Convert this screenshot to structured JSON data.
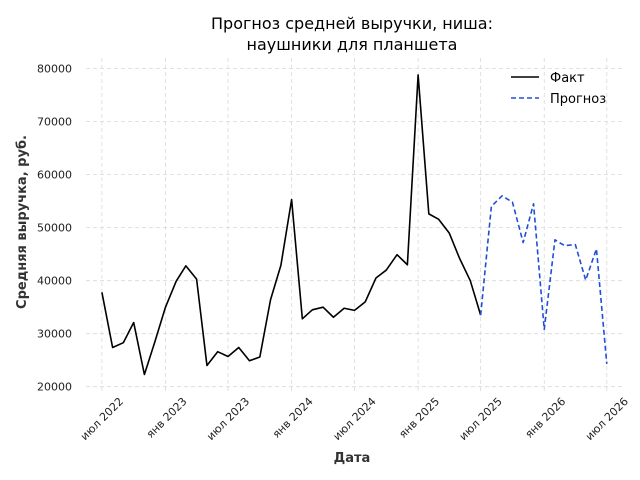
{
  "chart_data": {
    "type": "line",
    "title_lines": [
      "Прогноз средней выручки, ниша:",
      "наушники для планшета"
    ],
    "xlabel": "Дата",
    "ylabel": "Средняя выручка, руб.",
    "ylim": [
      19000,
      82000
    ],
    "xlim": [
      "2022-05-16",
      "2026-08-14"
    ],
    "y_ticks": [
      20000,
      30000,
      40000,
      50000,
      60000,
      70000,
      80000
    ],
    "x_ticks": [
      {
        "date": "2022-07-01",
        "label": "июл 2022"
      },
      {
        "date": "2023-01-01",
        "label": "янв 2023"
      },
      {
        "date": "2023-07-01",
        "label": "июл 2023"
      },
      {
        "date": "2024-01-01",
        "label": "янв 2024"
      },
      {
        "date": "2024-07-01",
        "label": "июл 2024"
      },
      {
        "date": "2025-01-01",
        "label": "янв 2025"
      },
      {
        "date": "2025-07-01",
        "label": "июл 2025"
      },
      {
        "date": "2026-01-01",
        "label": "янв 2026"
      },
      {
        "date": "2026-07-01",
        "label": "июл 2026"
      }
    ],
    "grid": true,
    "legend_position": "top-right",
    "series": [
      {
        "name": "Факт",
        "color": "#000000",
        "dash": "solid",
        "points": [
          {
            "x": "2022-07-01",
            "y": 37800
          },
          {
            "x": "2022-08-01",
            "y": 27400
          },
          {
            "x": "2022-09-01",
            "y": 28300
          },
          {
            "x": "2022-10-01",
            "y": 32100
          },
          {
            "x": "2022-11-01",
            "y": 22300
          },
          {
            "x": "2022-12-01",
            "y": 28400
          },
          {
            "x": "2023-01-01",
            "y": 35000
          },
          {
            "x": "2023-02-01",
            "y": 39900
          },
          {
            "x": "2023-03-01",
            "y": 42800
          },
          {
            "x": "2023-04-01",
            "y": 40300
          },
          {
            "x": "2023-05-01",
            "y": 24000
          },
          {
            "x": "2023-06-01",
            "y": 26600
          },
          {
            "x": "2023-07-01",
            "y": 25700
          },
          {
            "x": "2023-08-01",
            "y": 27400
          },
          {
            "x": "2023-09-01",
            "y": 24900
          },
          {
            "x": "2023-10-01",
            "y": 25600
          },
          {
            "x": "2023-11-01",
            "y": 36400
          },
          {
            "x": "2023-12-01",
            "y": 42900
          },
          {
            "x": "2024-01-01",
            "y": 55300
          },
          {
            "x": "2024-02-01",
            "y": 32800
          },
          {
            "x": "2024-03-01",
            "y": 34500
          },
          {
            "x": "2024-04-01",
            "y": 35000
          },
          {
            "x": "2024-05-01",
            "y": 33100
          },
          {
            "x": "2024-06-01",
            "y": 34800
          },
          {
            "x": "2024-07-01",
            "y": 34400
          },
          {
            "x": "2024-08-01",
            "y": 36000
          },
          {
            "x": "2024-09-01",
            "y": 40500
          },
          {
            "x": "2024-10-01",
            "y": 42000
          },
          {
            "x": "2024-11-01",
            "y": 44900
          },
          {
            "x": "2024-12-01",
            "y": 43000
          },
          {
            "x": "2025-01-01",
            "y": 78800
          },
          {
            "x": "2025-02-01",
            "y": 52600
          },
          {
            "x": "2025-03-01",
            "y": 51600
          },
          {
            "x": "2025-04-01",
            "y": 49000
          },
          {
            "x": "2025-05-01",
            "y": 44200
          },
          {
            "x": "2025-06-01",
            "y": 40000
          },
          {
            "x": "2025-07-01",
            "y": 33500
          }
        ]
      },
      {
        "name": "Прогноз",
        "color": "#1f4fd6",
        "dash": "dashed",
        "points": [
          {
            "x": "2025-07-01",
            "y": 33500
          },
          {
            "x": "2025-08-01",
            "y": 54000
          },
          {
            "x": "2025-09-01",
            "y": 56000
          },
          {
            "x": "2025-10-01",
            "y": 54800
          },
          {
            "x": "2025-11-01",
            "y": 47200
          },
          {
            "x": "2025-12-01",
            "y": 54500
          },
          {
            "x": "2026-01-01",
            "y": 30800
          },
          {
            "x": "2026-02-01",
            "y": 47700
          },
          {
            "x": "2026-03-01",
            "y": 46600
          },
          {
            "x": "2026-04-01",
            "y": 46800
          },
          {
            "x": "2026-05-01",
            "y": 40100
          },
          {
            "x": "2026-06-01",
            "y": 46000
          },
          {
            "x": "2026-07-01",
            "y": 24300
          }
        ]
      }
    ]
  }
}
